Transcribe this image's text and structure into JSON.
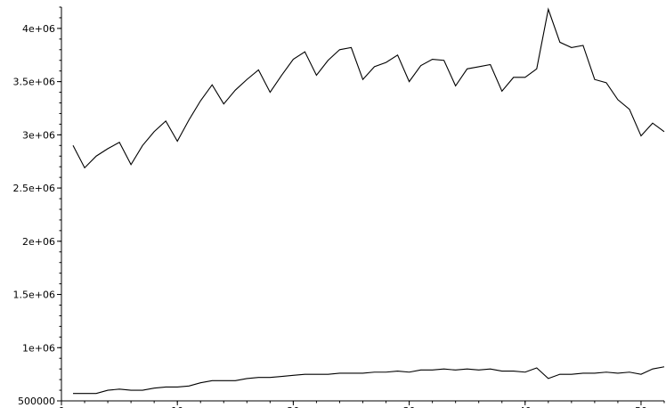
{
  "chart_data": {
    "type": "line",
    "title": "",
    "xlabel": "",
    "ylabel": "",
    "xlim": [
      0,
      52
    ],
    "ylim": [
      500000,
      4200000
    ],
    "grid": false,
    "x_ticks": [
      0,
      10,
      20,
      30,
      40,
      50
    ],
    "x_tick_labels": [
      "0",
      "10",
      "20",
      "30",
      "40",
      "50"
    ],
    "y_ticks": [
      500000,
      1000000,
      1500000,
      2000000,
      2500000,
      3000000,
      3500000,
      4000000
    ],
    "y_tick_labels": [
      "500000",
      "1e+06",
      "1.5e+06",
      "2e+06",
      "2.5e+06",
      "3e+06",
      "3.5e+06",
      "4e+06"
    ],
    "x": [
      1,
      2,
      3,
      4,
      5,
      6,
      7,
      8,
      9,
      10,
      11,
      12,
      13,
      14,
      15,
      16,
      17,
      18,
      19,
      20,
      21,
      22,
      23,
      24,
      25,
      26,
      27,
      28,
      29,
      30,
      31,
      32,
      33,
      34,
      35,
      36,
      37,
      38,
      39,
      40,
      41,
      42,
      43,
      44,
      45,
      46,
      47,
      48,
      49,
      50,
      51,
      52
    ],
    "series": [
      {
        "values": [
          2900000,
          2690000,
          2800000,
          2870000,
          2930000,
          2720000,
          2900000,
          3030000,
          3130000,
          2940000,
          3140000,
          3320000,
          3470000,
          3290000,
          3420000,
          3520000,
          3610000,
          3400000,
          3560000,
          3710000,
          3780000,
          3560000,
          3700000,
          3800000,
          3820000,
          3520000,
          3640000,
          3680000,
          3750000,
          3500000,
          3650000,
          3710000,
          3700000,
          3460000,
          3620000,
          3640000,
          3660000,
          3410000,
          3540000,
          3540000,
          3620000,
          4180000,
          3870000,
          3820000,
          3840000,
          3520000,
          3490000,
          3330000,
          3240000,
          2990000,
          3110000,
          3030000
        ]
      },
      {
        "values": [
          570000,
          570000,
          570000,
          600000,
          610000,
          600000,
          600000,
          620000,
          630000,
          630000,
          640000,
          670000,
          690000,
          690000,
          690000,
          710000,
          720000,
          720000,
          730000,
          740000,
          750000,
          750000,
          750000,
          760000,
          760000,
          760000,
          770000,
          770000,
          780000,
          770000,
          790000,
          790000,
          800000,
          790000,
          800000,
          790000,
          800000,
          780000,
          780000,
          770000,
          810000,
          710000,
          750000,
          750000,
          760000,
          760000,
          770000,
          760000,
          770000,
          750000,
          800000,
          820000
        ]
      }
    ]
  }
}
